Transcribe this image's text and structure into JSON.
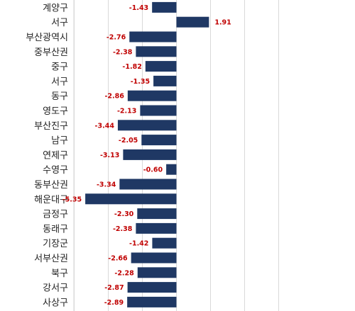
{
  "chart_data": {
    "type": "bar",
    "orientation": "horizontal",
    "categories": [
      "계양구",
      "서구",
      "부산광역시",
      "중부산권",
      "중구",
      "서구",
      "동구",
      "영도구",
      "부산진구",
      "남구",
      "연제구",
      "수영구",
      "동부산권",
      "해운대구",
      "금정구",
      "동래구",
      "기장군",
      "서부산권",
      "북구",
      "강서구",
      "사상구"
    ],
    "values": [
      -1.43,
      1.91,
      -2.76,
      -2.38,
      -1.82,
      -1.35,
      -2.86,
      -2.13,
      -3.44,
      -2.05,
      -3.13,
      -0.6,
      -3.34,
      -5.35,
      -2.3,
      -2.38,
      -1.42,
      -2.66,
      -2.28,
      -2.87,
      -2.89
    ],
    "value_labels": [
      "-1.43",
      "1.91",
      "-2.76",
      "-2.38",
      "-1.82",
      "-1.35",
      "-2.86",
      "-2.13",
      "-3.44",
      "-2.05",
      "-3.13",
      "-0.60",
      "-3.34",
      "-5.35",
      "-2.30",
      "-2.38",
      "-1.42",
      "-2.66",
      "-2.28",
      "-2.87",
      "-2.89"
    ],
    "xlim": [
      -6,
      6
    ],
    "grid": true,
    "colors": {
      "bar": "#1f3864",
      "label": "#c00000",
      "grid": "#d9d9d9",
      "text": "#222222"
    }
  }
}
